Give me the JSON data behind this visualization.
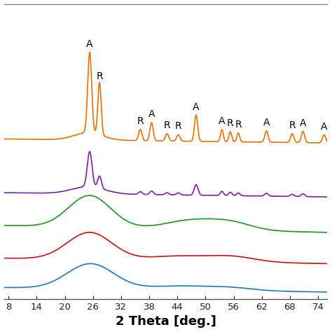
{
  "xlabel": "2 Theta [deg.]",
  "xlabel_fontsize": 13,
  "xlabel_fontweight": "bold",
  "xticks": [
    8,
    14,
    20,
    26,
    32,
    38,
    44,
    50,
    56,
    62,
    68,
    74
  ],
  "xlim": [
    7,
    76
  ],
  "background_color": "#ffffff",
  "colors": [
    "#1a7abf",
    "#cc1010",
    "#1a9a1a",
    "#7B1FA2",
    "#E87000"
  ],
  "annotations": [
    {
      "text": "A",
      "x": 25.3,
      "fontsize": 10
    },
    {
      "text": "R",
      "x": 27.5,
      "fontsize": 10
    },
    {
      "text": "R",
      "x": 36.1,
      "fontsize": 10
    },
    {
      "text": "A",
      "x": 38.5,
      "fontsize": 10
    },
    {
      "text": "R",
      "x": 41.8,
      "fontsize": 10
    },
    {
      "text": "R",
      "x": 44.2,
      "fontsize": 10
    },
    {
      "text": "A",
      "x": 48.0,
      "fontsize": 10
    },
    {
      "text": "A",
      "x": 53.5,
      "fontsize": 10
    },
    {
      "text": "R",
      "x": 55.3,
      "fontsize": 10
    },
    {
      "text": "R",
      "x": 57.0,
      "fontsize": 10
    },
    {
      "text": "A",
      "x": 63.0,
      "fontsize": 10
    },
    {
      "text": "R",
      "x": 68.5,
      "fontsize": 10
    },
    {
      "text": "A",
      "x": 70.8,
      "fontsize": 10
    },
    {
      "text": "A",
      "x": 75.3,
      "fontsize": 10
    }
  ]
}
